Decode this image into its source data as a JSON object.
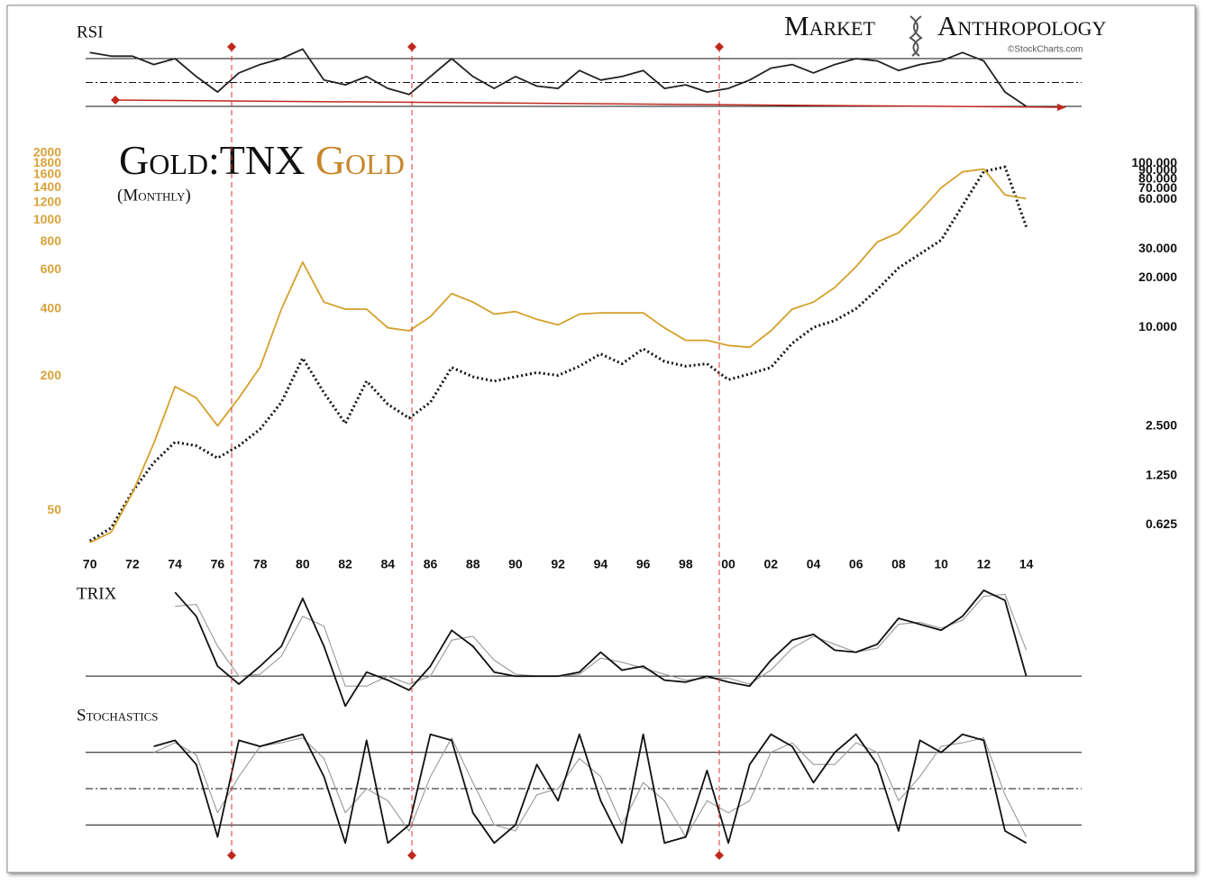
{
  "branding": {
    "left": "Market",
    "right": "Anthropology",
    "credit": "©StockCharts.com"
  },
  "chart_data": [
    {
      "type": "line",
      "title": "RSI",
      "x": [
        1970,
        1971,
        1972,
        1973,
        1974,
        1975,
        1976,
        1977,
        1978,
        1979,
        1980,
        1981,
        1982,
        1983,
        1984,
        1985,
        1986,
        1987,
        1988,
        1989,
        1990,
        1991,
        1992,
        1993,
        1994,
        1995,
        1996,
        1997,
        1998,
        1999,
        2000,
        2001,
        2002,
        2003,
        2004,
        2005,
        2006,
        2007,
        2008,
        2009,
        2010,
        2011,
        2012,
        2013,
        2014
      ],
      "xlim": [
        1969.8,
        2016.6
      ],
      "ylim": [
        28.5,
        82.8
      ],
      "hlines": [
        70,
        50,
        30
      ],
      "hline_styles": [
        "solid",
        "dashdot",
        "solid"
      ],
      "series": [
        {
          "color": "#222222",
          "style": "solid",
          "values": [
            75,
            72,
            72,
            65,
            70,
            55,
            42,
            58,
            65,
            70,
            78,
            52,
            48,
            55,
            45,
            40,
            55,
            70,
            55,
            45,
            55,
            47,
            45,
            60,
            52,
            55,
            60,
            45,
            48,
            42,
            45,
            52,
            62,
            65,
            58,
            65,
            70,
            68,
            60,
            65,
            68,
            75,
            68,
            42,
            30
          ]
        }
      ]
    },
    {
      "type": "line",
      "yscale": "log",
      "y2scale": "log",
      "subtitle": "(Monthly)",
      "x": [
        1970,
        1971,
        1972,
        1973,
        1974,
        1975,
        1976,
        1977,
        1978,
        1979,
        1980,
        1981,
        1982,
        1983,
        1984,
        1985,
        1986,
        1987,
        1988,
        1989,
        1990,
        1991,
        1992,
        1993,
        1994,
        1995,
        1996,
        1997,
        1998,
        1999,
        2000,
        2001,
        2002,
        2003,
        2004,
        2005,
        2006,
        2007,
        2008,
        2009,
        2010,
        2011,
        2012,
        2013,
        2014
      ],
      "xlim": [
        1969.8,
        2016.6
      ],
      "xticks": [
        {
          "value": 1970,
          "label": "70"
        },
        {
          "value": 1972,
          "label": "72"
        },
        {
          "value": 1974,
          "label": "74"
        },
        {
          "value": 1976,
          "label": "76"
        },
        {
          "value": 1978,
          "label": "78"
        },
        {
          "value": 1980,
          "label": "80"
        },
        {
          "value": 1982,
          "label": "82"
        },
        {
          "value": 1984,
          "label": "84"
        },
        {
          "value": 1986,
          "label": "86"
        },
        {
          "value": 1988,
          "label": "88"
        },
        {
          "value": 1990,
          "label": "90"
        },
        {
          "value": 1992,
          "label": "92"
        },
        {
          "value": 1994,
          "label": "94"
        },
        {
          "value": 1996,
          "label": "96"
        },
        {
          "value": 1998,
          "label": "98"
        },
        {
          "value": 2000,
          "label": "00"
        },
        {
          "value": 2002,
          "label": "02"
        },
        {
          "value": 2004,
          "label": "04"
        },
        {
          "value": 2006,
          "label": "06"
        },
        {
          "value": 2008,
          "label": "08"
        },
        {
          "value": 2010,
          "label": "10"
        },
        {
          "value": 2012,
          "label": "12"
        },
        {
          "value": 2014,
          "label": "14"
        }
      ],
      "ylim": [
        34,
        2000
      ],
      "yticks": [
        50,
        200,
        400,
        600,
        800,
        1000,
        1200,
        1400,
        1600,
        1800,
        2000
      ],
      "ytick_color": "#d9a23a",
      "y2lim": [
        0.453,
        115
      ],
      "y2ticks": [
        {
          "value": 100,
          "label": "100.000"
        },
        {
          "value": 90,
          "label": "90.000"
        },
        {
          "value": 80,
          "label": "80.000"
        },
        {
          "value": 70,
          "label": "70.000"
        },
        {
          "value": 60,
          "label": "60.000"
        },
        {
          "value": 30,
          "label": "30.000"
        },
        {
          "value": 20,
          "label": "20.000"
        },
        {
          "value": 10,
          "label": "10.000"
        },
        {
          "value": 2.5,
          "label": "2.500"
        },
        {
          "value": 1.25,
          "label": "1.250"
        },
        {
          "value": 0.625,
          "label": "0.625"
        }
      ],
      "series": [
        {
          "name": "Gold:TNX",
          "color": "#111111",
          "style": "dotted",
          "axis": "y2",
          "values": [
            0.5,
            0.6,
            1.0,
            1.5,
            2.0,
            1.9,
            1.6,
            1.9,
            2.4,
            3.5,
            6.5,
            4.0,
            2.6,
            4.7,
            3.4,
            2.8,
            3.5,
            5.7,
            5.0,
            4.7,
            5.0,
            5.3,
            5.1,
            5.8,
            6.9,
            6.0,
            7.4,
            6.2,
            5.8,
            6.0,
            4.8,
            5.2,
            5.7,
            8,
            10,
            11,
            13,
            17,
            23,
            28,
            34,
            55,
            89,
            95,
            41
          ]
        },
        {
          "name": "Gold",
          "color": "#d4a02a",
          "style": "solid",
          "values": [
            36,
            40,
            60,
            100,
            180,
            160,
            120,
            160,
            220,
            400,
            650,
            430,
            400,
            400,
            330,
            320,
            370,
            470,
            430,
            380,
            390,
            360,
            340,
            380,
            385,
            385,
            385,
            330,
            290,
            290,
            275,
            270,
            320,
            400,
            430,
            500,
            620,
            800,
            880,
            1100,
            1400,
            1650,
            1700,
            1300,
            1250
          ]
        }
      ]
    },
    {
      "type": "line",
      "title": "TRIX",
      "x": [
        1970,
        1971,
        1972,
        1973,
        1974,
        1975,
        1976,
        1977,
        1978,
        1979,
        1980,
        1981,
        1982,
        1983,
        1984,
        1985,
        1986,
        1987,
        1988,
        1989,
        1990,
        1991,
        1992,
        1993,
        1994,
        1995,
        1996,
        1997,
        1998,
        1999,
        2000,
        2001,
        2002,
        2003,
        2004,
        2005,
        2006,
        2007,
        2008,
        2009,
        2010,
        2011,
        2012,
        2013,
        2014
      ],
      "xlim": [
        1969.8,
        2016.6
      ],
      "ylim": [
        -1.8,
        4.3
      ],
      "hlines": [
        0
      ],
      "hline_styles": [
        "solid"
      ],
      "series": [
        {
          "color": "#999999",
          "style": "thin",
          "values": [
            null,
            null,
            null,
            null,
            3.5,
            3.6,
            1.5,
            0,
            0.1,
            1.0,
            3.0,
            2.5,
            -0.5,
            -0.5,
            0,
            -0.4,
            0,
            1.8,
            2.0,
            0.8,
            0.1,
            0,
            0,
            0.1,
            0.9,
            0.7,
            0.4,
            0.1,
            -0.2,
            -0.1,
            -0.1,
            -0.4,
            0.3,
            1.4,
            2.0,
            1.6,
            1.2,
            1.4,
            2.6,
            2.7,
            2.4,
            2.8,
            4.0,
            4.1,
            1.3
          ]
        },
        {
          "color": "#111111",
          "style": "solid",
          "values": [
            null,
            null,
            null,
            null,
            4.2,
            3.0,
            0.5,
            -0.4,
            0.5,
            1.5,
            3.9,
            1.5,
            -1.5,
            0.2,
            -0.2,
            -0.7,
            0.5,
            2.3,
            1.5,
            0.2,
            0,
            0,
            0,
            0.2,
            1.2,
            0.3,
            0.5,
            -0.2,
            -0.3,
            0,
            -0.3,
            -0.5,
            0.8,
            1.8,
            2.1,
            1.3,
            1.2,
            1.6,
            2.9,
            2.6,
            2.3,
            3.0,
            4.3,
            3.8,
            0
          ]
        }
      ]
    },
    {
      "type": "line",
      "title": "Stochastics",
      "x": [
        1970,
        1971,
        1972,
        1973,
        1974,
        1975,
        1976,
        1977,
        1978,
        1979,
        1980,
        1981,
        1982,
        1983,
        1984,
        1985,
        1986,
        1987,
        1988,
        1989,
        1990,
        1991,
        1992,
        1993,
        1994,
        1995,
        1996,
        1997,
        1998,
        1999,
        2000,
        2001,
        2002,
        2003,
        2004,
        2005,
        2006,
        2007,
        2008,
        2009,
        2010,
        2011,
        2012,
        2013,
        2014
      ],
      "xlim": [
        1969.8,
        2016.6
      ],
      "ylim": [
        0,
        100
      ],
      "hlines": [
        80,
        50,
        20
      ],
      "hline_styles": [
        "solid",
        "dashdot",
        "solid"
      ],
      "series": [
        {
          "color": "#999999",
          "style": "thin",
          "values": [
            null,
            null,
            null,
            80,
            88,
            78,
            30,
            60,
            85,
            88,
            92,
            75,
            30,
            50,
            40,
            15,
            60,
            92,
            55,
            20,
            15,
            45,
            50,
            75,
            60,
            20,
            55,
            40,
            10,
            40,
            30,
            40,
            80,
            88,
            70,
            70,
            88,
            80,
            40,
            60,
            85,
            88,
            92,
            45,
            10
          ]
        },
        {
          "color": "#111111",
          "style": "solid",
          "values": [
            null,
            null,
            null,
            85,
            90,
            70,
            10,
            90,
            85,
            90,
            95,
            60,
            5,
            90,
            5,
            20,
            95,
            90,
            30,
            5,
            20,
            70,
            40,
            95,
            40,
            5,
            95,
            5,
            10,
            65,
            5,
            70,
            95,
            85,
            55,
            80,
            95,
            70,
            15,
            90,
            80,
            95,
            90,
            15,
            5
          ]
        }
      ]
    }
  ]
}
